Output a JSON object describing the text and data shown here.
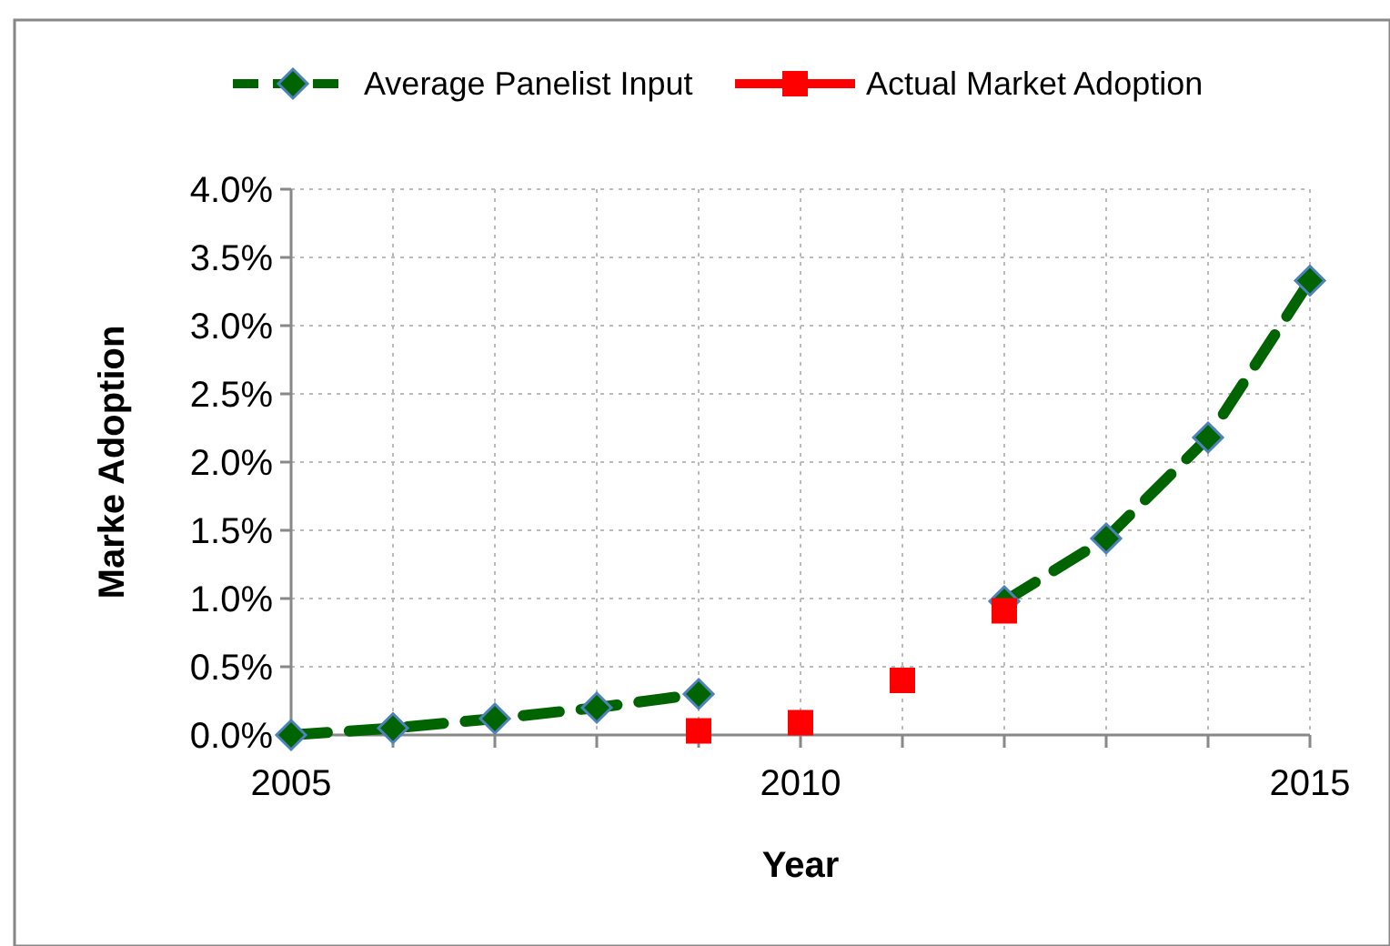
{
  "chart_data": {
    "type": "line",
    "xlabel": "Year",
    "ylabel": "Marke Adoption",
    "x": [
      2005,
      2006,
      2007,
      2008,
      2009,
      2010,
      2011,
      2012,
      2013,
      2014,
      2015
    ],
    "series": [
      {
        "name": "Average Panelist Input",
        "color": "#006400",
        "marker": "diamond",
        "line_style": "dashed",
        "values": [
          0,
          0.05,
          0.12,
          0.2,
          0.3,
          null,
          null,
          0.98,
          1.44,
          2.18,
          3.33
        ]
      },
      {
        "name": "Actual Market Adoption",
        "type": "scatter",
        "color": "#ff0000",
        "marker": "square",
        "values": [
          null,
          null,
          null,
          null,
          0.03,
          0.09,
          0.4,
          0.91,
          null,
          null,
          null
        ]
      }
    ],
    "xlim": [
      2005,
      2015
    ],
    "xticks": [
      2005,
      {
        "value": 2006,
        "label": null
      },
      {
        "value": 2007,
        "label": null
      },
      {
        "value": 2008,
        "label": null
      },
      {
        "value": 2009,
        "label": null
      },
      2010,
      {
        "value": 2011,
        "label": null
      },
      {
        "value": 2012,
        "label": null
      },
      {
        "value": 2013,
        "label": null
      },
      {
        "value": 2014,
        "label": null
      },
      2015
    ],
    "ylim": [
      0,
      4
    ],
    "yticks": [
      {
        "value": 0,
        "label": "0.0%"
      },
      {
        "value": 0.5,
        "label": "0.5%"
      },
      {
        "value": 1,
        "label": "1.0%"
      },
      {
        "value": 1.5,
        "label": "1.5%"
      },
      {
        "value": 2,
        "label": "2.0%"
      },
      {
        "value": 2.5,
        "label": "2.5%"
      },
      {
        "value": 3,
        "label": "3.0%"
      },
      {
        "value": 3.5,
        "label": "3.5%"
      },
      {
        "value": 4,
        "label": "4.0%"
      }
    ],
    "grid": true,
    "legend": "top"
  }
}
